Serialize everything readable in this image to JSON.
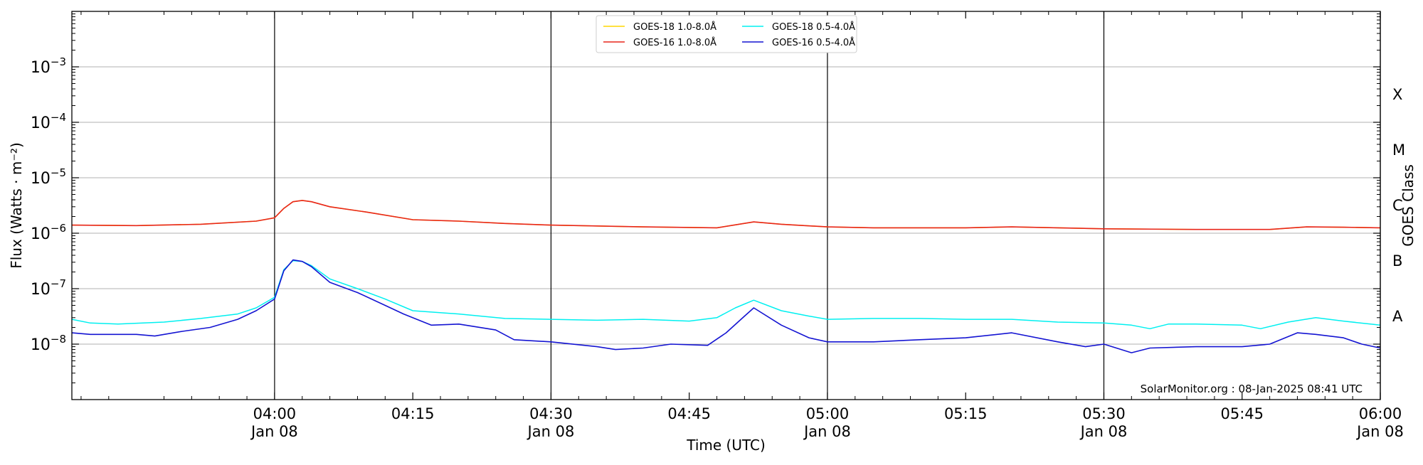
{
  "chart_data": {
    "type": "line",
    "xlabel": "Time (UTC)",
    "ylabel": "Flux (Watts · m⁻²)",
    "y2label": "GOES Class",
    "yscale": "log",
    "xlim": [
      "03:38",
      "06:00"
    ],
    "ylim": [
      1e-09,
      0.01
    ],
    "grid": "horizontal",
    "legend_position": "top-center",
    "annotation": "SolarMonitor.org : 08-Jan-2025 08:41 UTC",
    "x_ticks": [
      {
        "time": "04:00",
        "label": "04:00",
        "sublabel": "Jan 08"
      },
      {
        "time": "04:15",
        "label": "04:15",
        "sublabel": ""
      },
      {
        "time": "04:30",
        "label": "04:30",
        "sublabel": "Jan 08"
      },
      {
        "time": "04:45",
        "label": "04:45",
        "sublabel": ""
      },
      {
        "time": "05:00",
        "label": "05:00",
        "sublabel": "Jan 08"
      },
      {
        "time": "05:15",
        "label": "05:15",
        "sublabel": ""
      },
      {
        "time": "05:30",
        "label": "05:30",
        "sublabel": "Jan 08"
      },
      {
        "time": "05:45",
        "label": "05:45",
        "sublabel": ""
      },
      {
        "time": "06:00",
        "label": "06:00",
        "sublabel": "Jan 08"
      }
    ],
    "day_lines": [
      "04:00",
      "04:30",
      "05:00",
      "05:30",
      "06:00"
    ],
    "y_ticks": [
      {
        "value": 1e-08,
        "base": "10",
        "exp": "−8"
      },
      {
        "value": 1e-07,
        "base": "10",
        "exp": "−7"
      },
      {
        "value": 1e-06,
        "base": "10",
        "exp": "−6"
      },
      {
        "value": 1e-05,
        "base": "10",
        "exp": "−5"
      },
      {
        "value": 0.0001,
        "base": "10",
        "exp": "−4"
      },
      {
        "value": 0.001,
        "base": "10",
        "exp": "−3"
      }
    ],
    "goes_classes": [
      {
        "label": "A",
        "value": 3.16e-08
      },
      {
        "label": "B",
        "value": 3.16e-07
      },
      {
        "label": "C",
        "value": 3.16e-06
      },
      {
        "label": "M",
        "value": 3.16e-05
      },
      {
        "label": "X",
        "value": 0.000316
      }
    ],
    "series": [
      {
        "name": "GOES-18 1.0-8.0Å",
        "color": "#ffd700",
        "points": [
          [
            "03:38",
            1.4e-06
          ],
          [
            "03:45",
            1.37e-06
          ],
          [
            "03:52",
            1.45e-06
          ],
          [
            "03:58",
            1.65e-06
          ],
          [
            "04:00",
            1.9e-06
          ],
          [
            "04:01",
            2.8e-06
          ],
          [
            "04:02",
            3.7e-06
          ],
          [
            "04:03",
            3.9e-06
          ],
          [
            "04:04",
            3.7e-06
          ],
          [
            "04:06",
            3e-06
          ],
          [
            "04:10",
            2.4e-06
          ],
          [
            "04:15",
            1.75e-06
          ],
          [
            "04:20",
            1.65e-06
          ],
          [
            "04:25",
            1.5e-06
          ],
          [
            "04:30",
            1.4e-06
          ],
          [
            "04:40",
            1.3e-06
          ],
          [
            "04:48",
            1.25e-06
          ],
          [
            "04:52",
            1.6e-06
          ],
          [
            "04:55",
            1.45e-06
          ],
          [
            "05:00",
            1.3e-06
          ],
          [
            "05:05",
            1.25e-06
          ],
          [
            "05:15",
            1.25e-06
          ],
          [
            "05:20",
            1.3e-06
          ],
          [
            "05:25",
            1.25e-06
          ],
          [
            "05:30",
            1.2e-06
          ],
          [
            "05:40",
            1.17e-06
          ],
          [
            "05:48",
            1.17e-06
          ],
          [
            "05:52",
            1.3e-06
          ],
          [
            "05:56",
            1.28e-06
          ],
          [
            "06:00",
            1.25e-06
          ]
        ]
      },
      {
        "name": "GOES-16 1.0-8.0Å",
        "color": "#e8261b",
        "points": [
          [
            "03:38",
            1.4e-06
          ],
          [
            "03:45",
            1.37e-06
          ],
          [
            "03:52",
            1.45e-06
          ],
          [
            "03:58",
            1.65e-06
          ],
          [
            "04:00",
            1.9e-06
          ],
          [
            "04:01",
            2.8e-06
          ],
          [
            "04:02",
            3.7e-06
          ],
          [
            "04:03",
            3.9e-06
          ],
          [
            "04:04",
            3.7e-06
          ],
          [
            "04:06",
            3e-06
          ],
          [
            "04:10",
            2.4e-06
          ],
          [
            "04:15",
            1.75e-06
          ],
          [
            "04:20",
            1.65e-06
          ],
          [
            "04:25",
            1.5e-06
          ],
          [
            "04:30",
            1.4e-06
          ],
          [
            "04:40",
            1.3e-06
          ],
          [
            "04:48",
            1.25e-06
          ],
          [
            "04:52",
            1.6e-06
          ],
          [
            "04:55",
            1.45e-06
          ],
          [
            "05:00",
            1.3e-06
          ],
          [
            "05:05",
            1.25e-06
          ],
          [
            "05:15",
            1.25e-06
          ],
          [
            "05:20",
            1.3e-06
          ],
          [
            "05:25",
            1.25e-06
          ],
          [
            "05:30",
            1.2e-06
          ],
          [
            "05:40",
            1.17e-06
          ],
          [
            "05:48",
            1.17e-06
          ],
          [
            "05:52",
            1.3e-06
          ],
          [
            "05:56",
            1.28e-06
          ],
          [
            "06:00",
            1.25e-06
          ]
        ]
      },
      {
        "name": "GOES-18 0.5-4.0Å",
        "color": "#00f0f0",
        "points": [
          [
            "03:38",
            2.8e-08
          ],
          [
            "03:40",
            2.4e-08
          ],
          [
            "03:43",
            2.3e-08
          ],
          [
            "03:48",
            2.5e-08
          ],
          [
            "03:52",
            2.9e-08
          ],
          [
            "03:56",
            3.5e-08
          ],
          [
            "03:58",
            4.5e-08
          ],
          [
            "04:00",
            7e-08
          ],
          [
            "04:01",
            2.2e-07
          ],
          [
            "04:02",
            3.2e-07
          ],
          [
            "04:03",
            3.1e-07
          ],
          [
            "04:04",
            2.6e-07
          ],
          [
            "04:06",
            1.5e-07
          ],
          [
            "04:09",
            1e-07
          ],
          [
            "04:12",
            6.5e-08
          ],
          [
            "04:15",
            4e-08
          ],
          [
            "04:20",
            3.5e-08
          ],
          [
            "04:25",
            2.9e-08
          ],
          [
            "04:30",
            2.8e-08
          ],
          [
            "04:35",
            2.7e-08
          ],
          [
            "04:40",
            2.8e-08
          ],
          [
            "04:45",
            2.6e-08
          ],
          [
            "04:48",
            3e-08
          ],
          [
            "04:50",
            4.5e-08
          ],
          [
            "04:52",
            6.2e-08
          ],
          [
            "04:55",
            4e-08
          ],
          [
            "04:58",
            3.2e-08
          ],
          [
            "05:00",
            2.8e-08
          ],
          [
            "05:05",
            2.9e-08
          ],
          [
            "05:10",
            2.9e-08
          ],
          [
            "05:15",
            2.8e-08
          ],
          [
            "05:20",
            2.8e-08
          ],
          [
            "05:25",
            2.5e-08
          ],
          [
            "05:30",
            2.4e-08
          ],
          [
            "05:33",
            2.2e-08
          ],
          [
            "05:35",
            1.9e-08
          ],
          [
            "05:37",
            2.3e-08
          ],
          [
            "05:40",
            2.3e-08
          ],
          [
            "05:45",
            2.2e-08
          ],
          [
            "05:47",
            1.9e-08
          ],
          [
            "05:50",
            2.5e-08
          ],
          [
            "05:53",
            3e-08
          ],
          [
            "05:56",
            2.6e-08
          ],
          [
            "06:00",
            2.2e-08
          ]
        ]
      },
      {
        "name": "GOES-16 0.5-4.0Å",
        "color": "#1414d2",
        "points": [
          [
            "03:38",
            1.6e-08
          ],
          [
            "03:40",
            1.5e-08
          ],
          [
            "03:45",
            1.5e-08
          ],
          [
            "03:47",
            1.4e-08
          ],
          [
            "03:50",
            1.7e-08
          ],
          [
            "03:53",
            2e-08
          ],
          [
            "03:56",
            2.8e-08
          ],
          [
            "03:58",
            4e-08
          ],
          [
            "04:00",
            6.5e-08
          ],
          [
            "04:01",
            2.1e-07
          ],
          [
            "04:02",
            3.3e-07
          ],
          [
            "04:03",
            3.1e-07
          ],
          [
            "04:04",
            2.5e-07
          ],
          [
            "04:06",
            1.3e-07
          ],
          [
            "04:09",
            8.5e-08
          ],
          [
            "04:12",
            5e-08
          ],
          [
            "04:14",
            3.5e-08
          ],
          [
            "04:17",
            2.2e-08
          ],
          [
            "04:20",
            2.3e-08
          ],
          [
            "04:24",
            1.8e-08
          ],
          [
            "04:26",
            1.2e-08
          ],
          [
            "04:30",
            1.1e-08
          ],
          [
            "04:35",
            9e-09
          ],
          [
            "04:37",
            8e-09
          ],
          [
            "04:40",
            8.5e-09
          ],
          [
            "04:43",
            1e-08
          ],
          [
            "04:47",
            9.5e-09
          ],
          [
            "04:49",
            1.6e-08
          ],
          [
            "04:51",
            3.2e-08
          ],
          [
            "04:52",
            4.5e-08
          ],
          [
            "04:55",
            2.2e-08
          ],
          [
            "04:58",
            1.3e-08
          ],
          [
            "05:00",
            1.1e-08
          ],
          [
            "05:05",
            1.1e-08
          ],
          [
            "05:10",
            1.2e-08
          ],
          [
            "05:15",
            1.3e-08
          ],
          [
            "05:20",
            1.6e-08
          ],
          [
            "05:25",
            1.1e-08
          ],
          [
            "05:28",
            9e-09
          ],
          [
            "05:30",
            1e-08
          ],
          [
            "05:33",
            7e-09
          ],
          [
            "05:35",
            8.5e-09
          ],
          [
            "05:40",
            9e-09
          ],
          [
            "05:45",
            9e-09
          ],
          [
            "05:48",
            1e-08
          ],
          [
            "05:51",
            1.6e-08
          ],
          [
            "05:53",
            1.5e-08
          ],
          [
            "05:56",
            1.3e-08
          ],
          [
            "05:58",
            1e-08
          ],
          [
            "06:00",
            8.5e-09
          ]
        ]
      }
    ]
  }
}
